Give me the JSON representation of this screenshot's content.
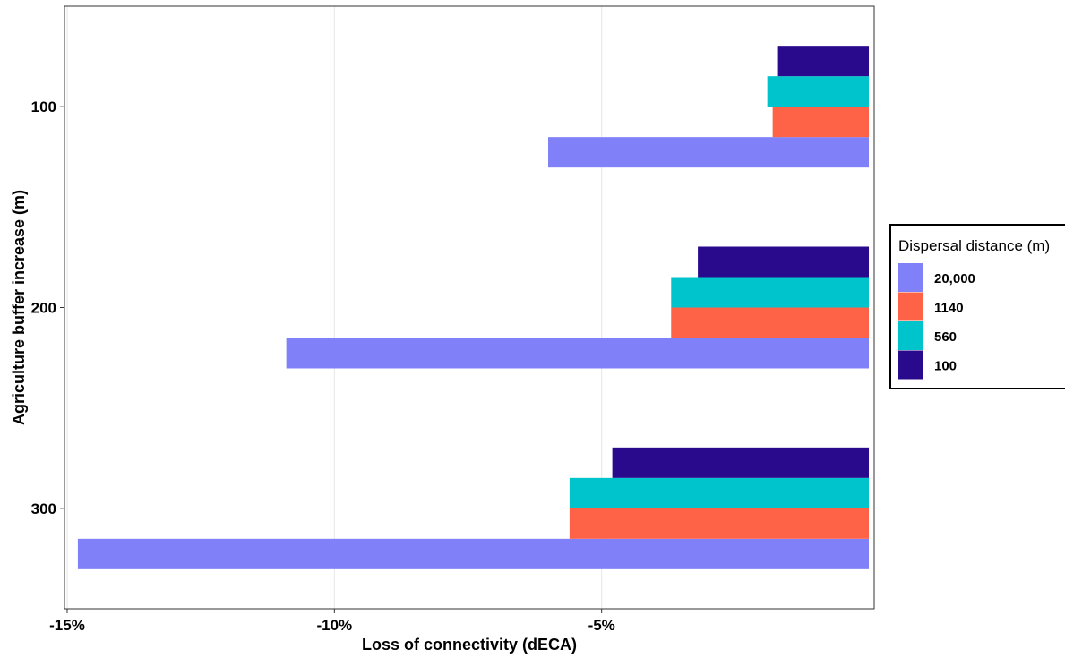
{
  "chart_data": {
    "type": "bar",
    "orientation": "horizontal",
    "categories": [
      "100",
      "200",
      "300"
    ],
    "series": [
      {
        "name": "20,000",
        "color": "#8080F8",
        "values": [
          -6.0,
          -10.9,
          -14.8
        ]
      },
      {
        "name": "1140",
        "color": "#FF6347",
        "values": [
          -1.8,
          -3.7,
          -5.6
        ]
      },
      {
        "name": "560",
        "color": "#00C4CC",
        "values": [
          -1.9,
          -3.7,
          -5.6
        ]
      },
      {
        "name": "100",
        "color": "#2A0A8C",
        "values": [
          -1.7,
          -3.2,
          -4.8
        ]
      }
    ],
    "xlabel": "Loss of connectivity (dECA)",
    "ylabel": "Agriculture buffer increase (m)",
    "xlim": [
      -15.05,
      0.1
    ],
    "x_ticks": [
      {
        "value": -15,
        "label": "-15%"
      },
      {
        "value": -10,
        "label": "-10%"
      },
      {
        "value": -5,
        "label": "-5%"
      }
    ],
    "grid": "vertical major lines",
    "legend": {
      "title": "Dispersal distance (m)",
      "position": "right"
    }
  }
}
